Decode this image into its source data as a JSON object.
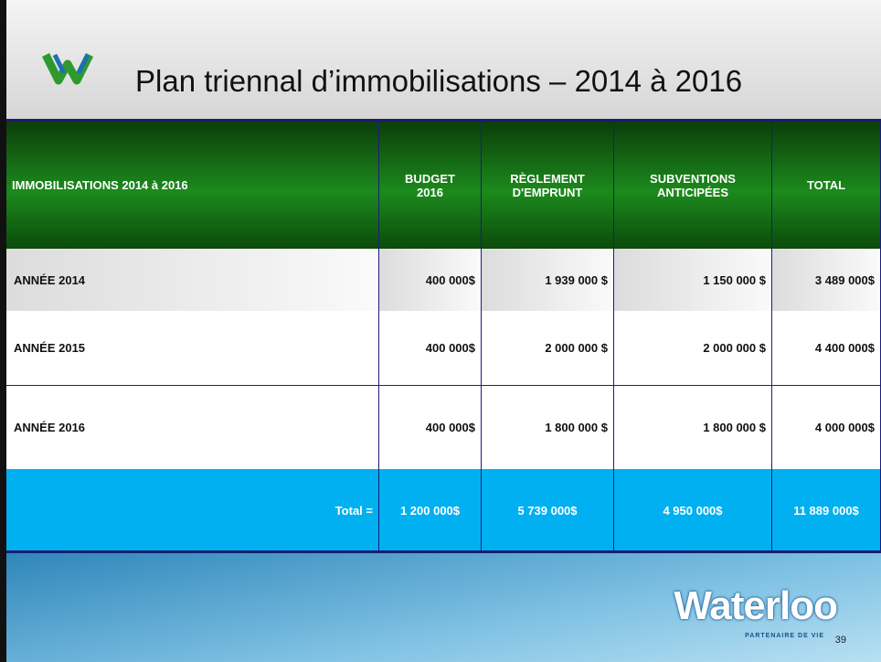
{
  "header": {
    "title": "Plan triennal d’immobilisations – 2014 à 2016"
  },
  "table": {
    "columns": [
      "IMMOBILISATIONS 2014 à 2016",
      "BUDGET 2016",
      "RÈGLEMENT D'EMPRUNT",
      "SUBVENTIONS ANTICIPÉES",
      "TOTAL"
    ],
    "rows": [
      [
        "ANNÉE 2014",
        "400 000$",
        "1 939 000 $",
        "1 150 000 $",
        "3 489 000$"
      ],
      [
        "ANNÉE 2015",
        "400 000$",
        "2 000 000 $",
        "2 000 000 $",
        "4 400 000$"
      ],
      [
        "ANNÉE 2016",
        "400 000$",
        "1 800 000 $",
        "1 800 000 $",
        "4 000 000$"
      ]
    ],
    "total": [
      "Total =",
      "1 200 000$",
      "5 739 000$",
      "4 950 000$",
      "11 889 000$"
    ]
  },
  "footer": {
    "logo": "Waterloo",
    "tagline": "PARTENAIRE DE VIE",
    "page": "39"
  }
}
